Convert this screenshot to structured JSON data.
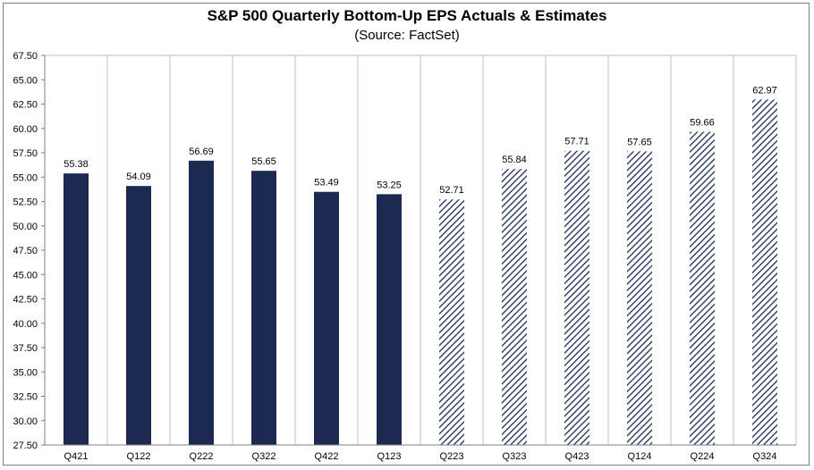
{
  "chart_data": {
    "type": "bar",
    "title": "S&P 500 Quarterly Bottom-Up EPS Actuals & Estimates",
    "subtitle": "(Source: FactSet)",
    "xlabel": "",
    "ylabel": "",
    "categories": [
      "Q421",
      "Q122",
      "Q222",
      "Q322",
      "Q422",
      "Q123",
      "Q223",
      "Q323",
      "Q423",
      "Q124",
      "Q224",
      "Q324"
    ],
    "series": [
      {
        "values": [
          55.38,
          54.09,
          56.69,
          55.65,
          53.49,
          53.25,
          52.71,
          55.84,
          57.71,
          57.65,
          59.66,
          62.97
        ],
        "labels": [
          "55.38",
          "54.09",
          "56.69",
          "55.65",
          "53.49",
          "53.25",
          "52.71",
          "55.84",
          "57.71",
          "57.65",
          "59.66",
          "62.97"
        ],
        "kinds": [
          "actual",
          "actual",
          "actual",
          "actual",
          "actual",
          "actual",
          "estimate",
          "estimate",
          "estimate",
          "estimate",
          "estimate",
          "estimate"
        ]
      }
    ],
    "ylim": [
      27.5,
      67.5
    ],
    "yticks": [
      "27.50",
      "30.00",
      "32.50",
      "35.00",
      "37.50",
      "40.00",
      "42.50",
      "45.00",
      "47.50",
      "50.00",
      "52.50",
      "55.00",
      "57.50",
      "60.00",
      "62.50",
      "65.00",
      "67.50"
    ],
    "grid": "vertical",
    "legend": "none",
    "colors": {
      "actual": "#1c2a52",
      "estimate": "#1c2a52",
      "grid": "#bfbfbf",
      "axis": "#7f7f7f"
    }
  }
}
